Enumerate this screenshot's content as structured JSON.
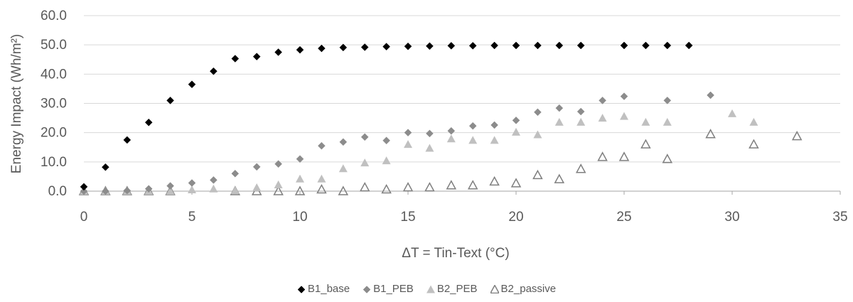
{
  "chart_data": {
    "type": "scatter",
    "xlabel": "ΔT = Tin-Text (°C)",
    "ylabel": "Energy Impact (Wh/m²)",
    "xlim": [
      0,
      35
    ],
    "ylim": [
      0,
      60
    ],
    "xticks": [
      0,
      5,
      10,
      15,
      20,
      25,
      30,
      35
    ],
    "yticks": [
      0,
      10,
      20,
      30,
      40,
      50,
      60
    ],
    "y_tick_format": "0.0",
    "grid": "horizontal",
    "legend_position": "bottom",
    "series": [
      {
        "name": "B1_base",
        "marker": "diamond-filled",
        "color": "#000000",
        "points": [
          [
            0,
            1.5
          ],
          [
            1,
            8.2
          ],
          [
            2,
            17.5
          ],
          [
            3,
            23.5
          ],
          [
            4,
            31
          ],
          [
            5,
            36.5
          ],
          [
            6,
            41
          ],
          [
            7,
            45.3
          ],
          [
            8,
            46
          ],
          [
            9,
            47.5
          ],
          [
            10,
            48.3
          ],
          [
            11,
            48.8
          ],
          [
            12,
            49.1
          ],
          [
            13,
            49.2
          ],
          [
            14,
            49.4
          ],
          [
            15,
            49.5
          ],
          [
            16,
            49.6
          ],
          [
            17,
            49.7
          ],
          [
            18,
            49.7
          ],
          [
            19,
            49.8
          ],
          [
            20,
            49.8
          ],
          [
            21,
            49.8
          ],
          [
            22,
            49.8
          ],
          [
            23,
            49.8
          ],
          [
            25,
            49.8
          ],
          [
            26,
            49.8
          ],
          [
            27,
            49.8
          ],
          [
            28,
            49.8
          ]
        ]
      },
      {
        "name": "B1_PEB",
        "marker": "diamond-filled",
        "color": "#8c8c8c",
        "points": [
          [
            0,
            0
          ],
          [
            1,
            0
          ],
          [
            2,
            0.2
          ],
          [
            3,
            0.8
          ],
          [
            4,
            1.8
          ],
          [
            5,
            2.8
          ],
          [
            6,
            3.8
          ],
          [
            7,
            6
          ],
          [
            8,
            8.3
          ],
          [
            9,
            9.3
          ],
          [
            10,
            11
          ],
          [
            11,
            15.5
          ],
          [
            12,
            16.8
          ],
          [
            13,
            18.5
          ],
          [
            14,
            17.3
          ],
          [
            15,
            20
          ],
          [
            16,
            19.7
          ],
          [
            17,
            20.6
          ],
          [
            18,
            22.3
          ],
          [
            19,
            22.6
          ],
          [
            20,
            24.2
          ],
          [
            21,
            27
          ],
          [
            22,
            28.4
          ],
          [
            23,
            27.2
          ],
          [
            24,
            31
          ],
          [
            25,
            32.4
          ],
          [
            27,
            31
          ],
          [
            29,
            32.8
          ]
        ]
      },
      {
        "name": "B2_PEB",
        "marker": "triangle-filled",
        "color": "#c0c0c0",
        "points": [
          [
            0,
            0
          ],
          [
            1,
            0
          ],
          [
            2,
            0
          ],
          [
            3,
            0
          ],
          [
            4,
            0
          ],
          [
            5,
            0.5
          ],
          [
            6,
            0.8
          ],
          [
            7,
            0.2
          ],
          [
            8,
            1.2
          ],
          [
            9,
            2.2
          ],
          [
            10,
            4.2
          ],
          [
            11,
            4.2
          ],
          [
            12,
            7.7
          ],
          [
            13,
            9.7
          ],
          [
            14,
            10.4
          ],
          [
            15,
            16
          ],
          [
            16,
            14.7
          ],
          [
            17,
            17.9
          ],
          [
            18,
            17.4
          ],
          [
            19,
            17.4
          ],
          [
            20,
            20.2
          ],
          [
            21,
            19.3
          ],
          [
            22,
            23.6
          ],
          [
            23,
            23.6
          ],
          [
            24,
            25
          ],
          [
            25,
            25.6
          ],
          [
            26,
            23.6
          ],
          [
            27,
            23.6
          ],
          [
            30,
            26.5
          ],
          [
            31,
            23.6
          ]
        ]
      },
      {
        "name": "B2_passive",
        "marker": "triangle-open",
        "color": "#7f7f7f",
        "points": [
          [
            0,
            0
          ],
          [
            1,
            0
          ],
          [
            2,
            0
          ],
          [
            3,
            0
          ],
          [
            4,
            0
          ],
          [
            7,
            0
          ],
          [
            8,
            0
          ],
          [
            9,
            0
          ],
          [
            10,
            0
          ],
          [
            11,
            0.6
          ],
          [
            12,
            0
          ],
          [
            13,
            1.3
          ],
          [
            14,
            0.6
          ],
          [
            15,
            1.3
          ],
          [
            16,
            1.3
          ],
          [
            17,
            2
          ],
          [
            18,
            2
          ],
          [
            19,
            3.3
          ],
          [
            20,
            2.7
          ],
          [
            21,
            5.5
          ],
          [
            22,
            4.1
          ],
          [
            23,
            7.6
          ],
          [
            24,
            11.7
          ],
          [
            25,
            11.7
          ],
          [
            26,
            16
          ],
          [
            27,
            11
          ],
          [
            29,
            19.5
          ],
          [
            31,
            16
          ],
          [
            33,
            18.8
          ]
        ]
      }
    ]
  }
}
